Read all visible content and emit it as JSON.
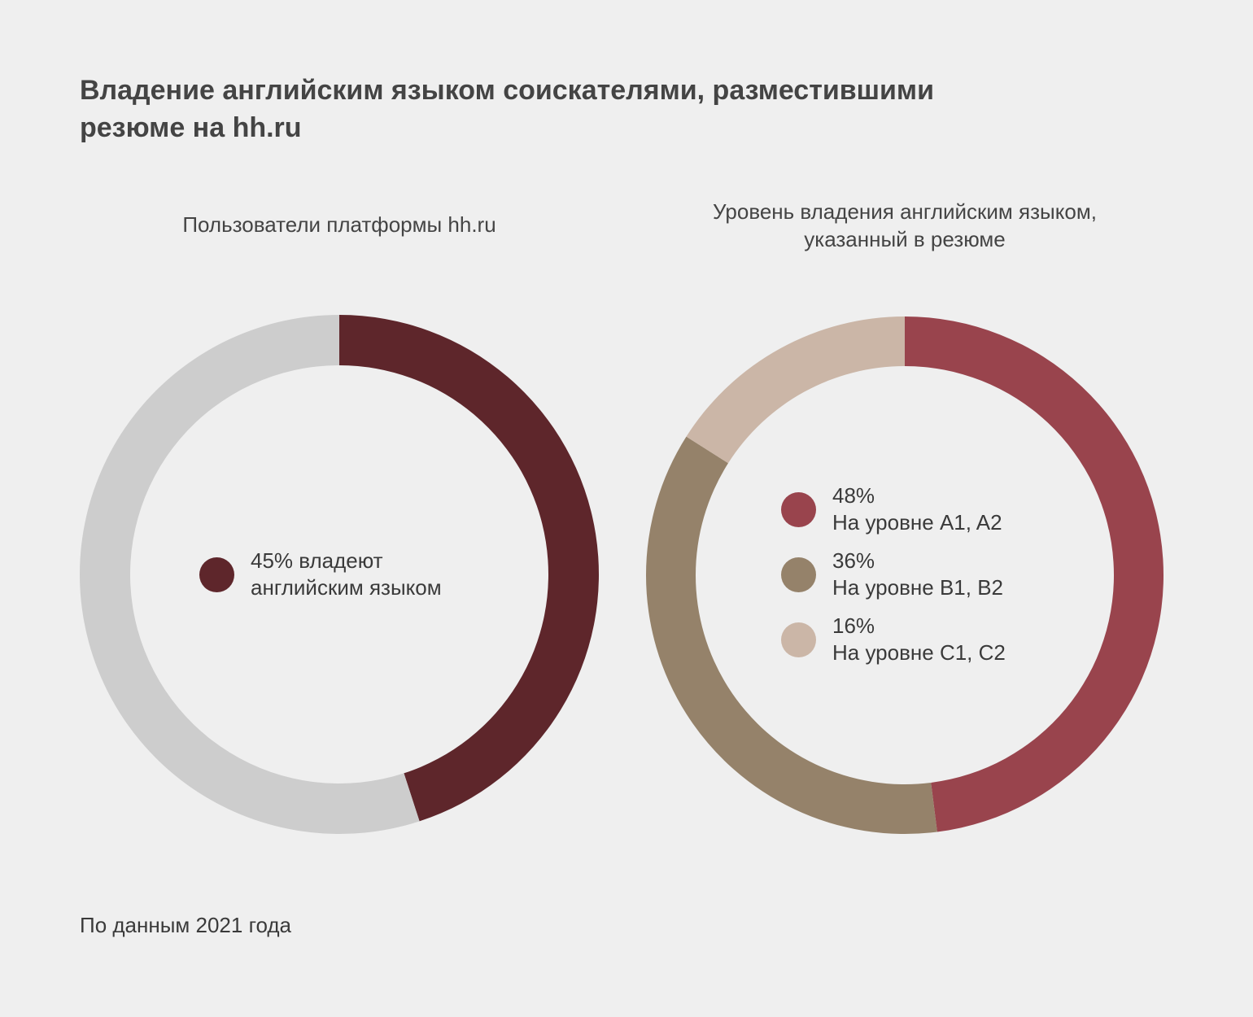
{
  "title": "Владение английским языком соискателями, разместившими резюме на hh.ru",
  "footnote": "По данным 2021 года",
  "chart_data": [
    {
      "type": "pie",
      "variant": "donut",
      "title": "Пользователи платформы hh.ru",
      "slices": [
        {
          "label": "45% владеют английским языком",
          "value": 45,
          "color": "#5e262b",
          "legend": true
        },
        {
          "label": "",
          "value": 55,
          "color": "#cdcdcd",
          "legend": false
        }
      ],
      "legend": [
        {
          "lines": [
            "45% владеют",
            "английским языком"
          ],
          "color": "#5e262b"
        }
      ]
    },
    {
      "type": "pie",
      "variant": "donut",
      "title": "Уровень владения английским языком, указанный в резюме",
      "slices": [
        {
          "label": "На уровне A1, A2",
          "value": 48,
          "color": "#99444d"
        },
        {
          "label": "На уровне B1, B2",
          "value": 36,
          "color": "#95826a"
        },
        {
          "label": "На уровне C1, C2",
          "value": 16,
          "color": "#cbb6a7"
        }
      ],
      "legend": [
        {
          "lines": [
            "48%",
            "На уровне A1, A2"
          ],
          "color": "#99444d"
        },
        {
          "lines": [
            "36%",
            "На уровне B1, B2"
          ],
          "color": "#95826a"
        },
        {
          "lines": [
            "16%",
            "На уровне C1, C2"
          ],
          "color": "#cbb6a7"
        }
      ]
    }
  ]
}
